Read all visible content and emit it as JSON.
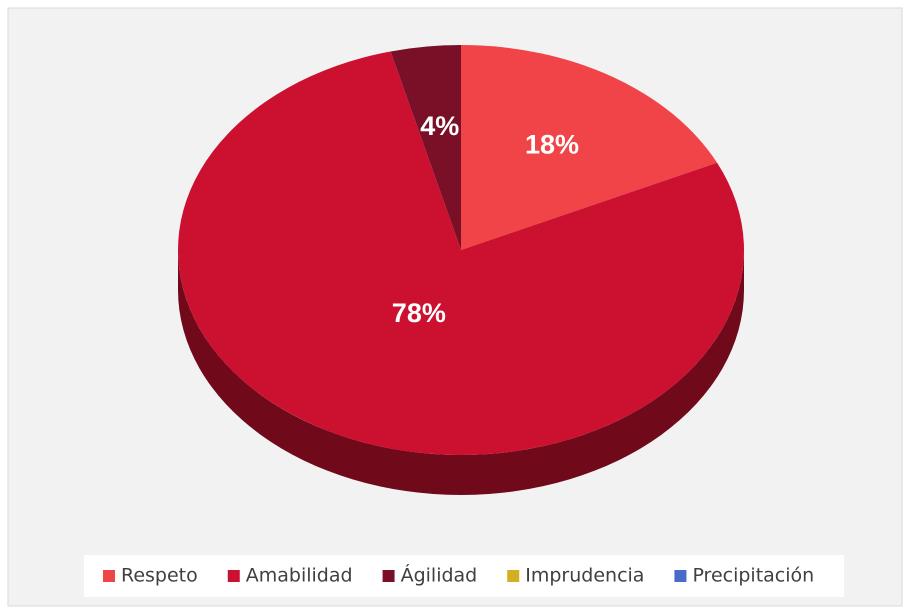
{
  "chart_data": {
    "type": "pie",
    "categories": [
      "Respeto",
      "Amabilidad",
      "Ágilidad",
      "Imprudencia",
      "Precipitación"
    ],
    "values": [
      18,
      78,
      4,
      0,
      0
    ],
    "value_labels": [
      "18%",
      "78%",
      "4%",
      null,
      null
    ],
    "colors": [
      "#f04448",
      "#cc1030",
      "#7a1028",
      "#d4b020",
      "#4a6cc8"
    ],
    "legend": "bottom"
  }
}
